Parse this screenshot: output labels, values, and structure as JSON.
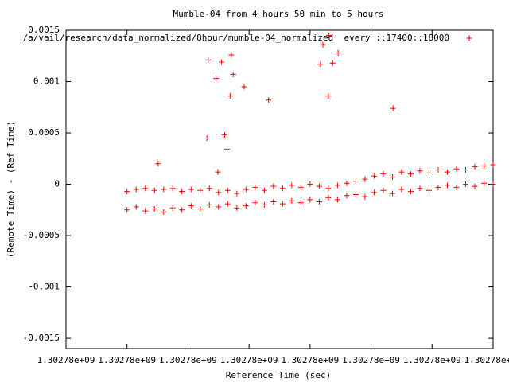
{
  "chart_data": {
    "type": "scatter",
    "title": "Mumble-04 from 4 hours 50 min to 5 hours",
    "x_label": "Reference Time (sec)",
    "y_label": "(Remote Time) - (Ref Time)",
    "xlim": [
      1302777300,
      1302778000
    ],
    "xticks": [
      {
        "value": 1302777300,
        "label": "1.30278e+09"
      },
      {
        "value": 1302777400,
        "label": "1.30278e+09"
      },
      {
        "value": 1302777500,
        "label": "1.30278e+09"
      },
      {
        "value": 1302777600,
        "label": "1.30278e+09"
      },
      {
        "value": 1302777700,
        "label": "1.30278e+09"
      },
      {
        "value": 1302777800,
        "label": "1.30278e+09"
      },
      {
        "value": 1302777900,
        "label": "1.30278e+09"
      },
      {
        "value": 1302778000,
        "label": "1.30278e+09"
      }
    ],
    "ylim": [
      -0.0016,
      0.0015
    ],
    "yticks": [
      -0.0015,
      -0.001,
      -0.0005,
      0,
      0.0005,
      0.001,
      0.0015
    ],
    "legend": "top-right",
    "series": [
      {
        "name": "/a/vail/research/data_normalized/8hour/mumble-04_normalized' every ::17400::18000",
        "color": "#ff0000",
        "x": [
          1302777400,
          1302777415,
          1302777430,
          1302777445,
          1302777460,
          1302777475,
          1302777490,
          1302777505,
          1302777520,
          1302777535,
          1302777550,
          1302777565,
          1302777580,
          1302777595,
          1302777610,
          1302777625,
          1302777640,
          1302777655,
          1302777670,
          1302777685,
          1302777700,
          1302777715,
          1302777730,
          1302777745,
          1302777760,
          1302777775,
          1302777790,
          1302777805,
          1302777820,
          1302777835,
          1302777850,
          1302777865,
          1302777880,
          1302777895,
          1302777910,
          1302777925,
          1302777940,
          1302777955,
          1302777970,
          1302777985,
          1302778000,
          1302777400,
          1302777415,
          1302777430,
          1302777445,
          1302777460,
          1302777475,
          1302777490,
          1302777505,
          1302777520,
          1302777535,
          1302777550,
          1302777565,
          1302777580,
          1302777595,
          1302777610,
          1302777625,
          1302777640,
          1302777655,
          1302777670,
          1302777685,
          1302777700,
          1302777715,
          1302777730,
          1302777745,
          1302777760,
          1302777775,
          1302777790,
          1302777805,
          1302777820,
          1302777835,
          1302777850,
          1302777865,
          1302777880,
          1302777895,
          1302777910,
          1302777925,
          1302777940,
          1302777955,
          1302777970,
          1302777985,
          1302778000,
          1302777451,
          1302777531,
          1302777533,
          1302777546,
          1302777555,
          1302777560,
          1302777564,
          1302777569,
          1302777571,
          1302777574,
          1302777592,
          1302777632,
          1302777549,
          1302777717,
          1302777721,
          1302777730,
          1302777731,
          1302777737,
          1302777746,
          1302777836
        ],
        "values": [
          -7e-05,
          -5e-05,
          -4e-05,
          -6e-05,
          -5e-05,
          -4e-05,
          -7e-05,
          -5e-05,
          -6e-05,
          -4e-05,
          -8e-05,
          -6e-05,
          -9e-05,
          -5e-05,
          -3e-05,
          -6e-05,
          -2e-05,
          -4e-05,
          -1e-05,
          -3e-05,
          0,
          -2e-05,
          -4e-05,
          -1e-05,
          1e-05,
          3e-05,
          5e-05,
          8e-05,
          0.0001,
          7e-05,
          0.00012,
          0.0001,
          0.00013,
          0.00011,
          0.00014,
          0.00012,
          0.00015,
          0.00014,
          0.00017,
          0.00018,
          0.00019,
          -0.00025,
          -0.00022,
          -0.00026,
          -0.00024,
          -0.00027,
          -0.00023,
          -0.00025,
          -0.00021,
          -0.00024,
          -0.0002,
          -0.00022,
          -0.00019,
          -0.00023,
          -0.00021,
          -0.00018,
          -0.0002,
          -0.00017,
          -0.00019,
          -0.00016,
          -0.00018,
          -0.00015,
          -0.00017,
          -0.00013,
          -0.00015,
          -0.00011,
          -0.0001,
          -0.00012,
          -8e-05,
          -6e-05,
          -9e-05,
          -5e-05,
          -7e-05,
          -4e-05,
          -6e-05,
          -3e-05,
          -1e-05,
          -3e-05,
          0,
          -2e-05,
          1e-05,
          0,
          0.0002,
          0.00045,
          0.00121,
          0.00103,
          0.00119,
          0.00048,
          0.00034,
          0.00086,
          0.00126,
          0.00107,
          0.00095,
          0.00082,
          0.00012,
          0.00117,
          0.00136,
          0.00086,
          0.00145,
          0.00118,
          0.00128,
          0.00074
        ]
      }
    ]
  }
}
